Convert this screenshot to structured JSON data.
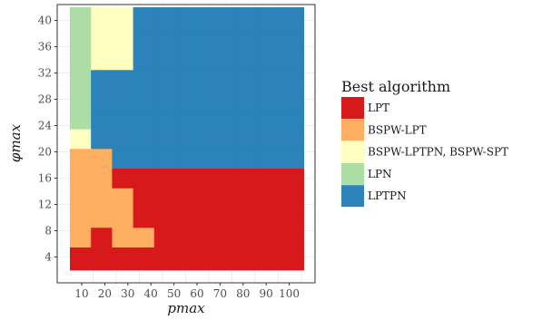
{
  "chart_data": {
    "type": "heatmap",
    "xlabel": "pmax",
    "ylabel": "φmax",
    "x_categories": [
      "10",
      "20",
      "30",
      "40",
      "50",
      "60",
      "70",
      "80",
      "90",
      "100"
    ],
    "y_ticks": [
      "4",
      "8",
      "12",
      "16",
      "20",
      "24",
      "28",
      "32",
      "36",
      "40"
    ],
    "grid": true,
    "legend_position": "right",
    "legend": {
      "title": "Best algorithm",
      "entries": [
        {
          "key": "LPT",
          "label": "LPT",
          "color": "#d7191c"
        },
        {
          "key": "BSPW-LPT",
          "label": "BSPW-LPT",
          "color": "#fdae61"
        },
        {
          "key": "BSPW-LPTPN_SPT",
          "label": "BSPW-LPTPN, BSPW-SPT",
          "color": "#ffffbf"
        },
        {
          "key": "LPN",
          "label": "LPN",
          "color": "#abdda4"
        },
        {
          "key": "LPTPN",
          "label": "LPTPN",
          "color": "#2b83ba"
        }
      ]
    },
    "cell_rows": [
      {
        "phimax": 4,
        "best": [
          "LPT",
          "LPT",
          "LPT",
          "LPT",
          "LPT",
          "LPT",
          "LPT",
          "LPT",
          "LPT",
          "LPT",
          "LPT"
        ]
      },
      {
        "phimax": 7,
        "best": [
          "BSPW-LPT",
          "LPT",
          "BSPW-LPT",
          "BSPW-LPT",
          "LPT",
          "LPT",
          "LPT",
          "LPT",
          "LPT",
          "LPT",
          "LPT"
        ]
      },
      {
        "phimax": 10,
        "best": [
          "BSPW-LPT",
          "BSPW-LPT",
          "BSPW-LPT",
          "LPT",
          "LPT",
          "LPT",
          "LPT",
          "LPT",
          "LPT",
          "LPT",
          "LPT"
        ]
      },
      {
        "phimax": 13,
        "best": [
          "BSPW-LPT",
          "BSPW-LPT",
          "BSPW-LPT",
          "LPT",
          "LPT",
          "LPT",
          "LPT",
          "LPT",
          "LPT",
          "LPT",
          "LPT"
        ]
      },
      {
        "phimax": 16,
        "best": [
          "BSPW-LPT",
          "BSPW-LPT",
          "LPT",
          "LPT",
          "LPT",
          "LPT",
          "LPT",
          "LPT",
          "LPT",
          "LPT",
          "LPT"
        ]
      },
      {
        "phimax": 19,
        "best": [
          "BSPW-LPT",
          "BSPW-LPT",
          "LPTPN",
          "LPTPN",
          "LPTPN",
          "LPTPN",
          "LPTPN",
          "LPTPN",
          "LPTPN",
          "LPTPN",
          "LPTPN"
        ]
      },
      {
        "phimax": 22,
        "best": [
          "BSPW-LPTPN_SPT",
          "LPTPN",
          "LPTPN",
          "LPTPN",
          "LPTPN",
          "LPTPN",
          "LPTPN",
          "LPTPN",
          "LPTPN",
          "LPTPN",
          "LPTPN"
        ]
      },
      {
        "phimax": 25,
        "best": [
          "LPN",
          "LPTPN",
          "LPTPN",
          "LPTPN",
          "LPTPN",
          "LPTPN",
          "LPTPN",
          "LPTPN",
          "LPTPN",
          "LPTPN",
          "LPTPN"
        ]
      },
      {
        "phimax": 28,
        "best": [
          "LPN",
          "LPTPN",
          "LPTPN",
          "LPTPN",
          "LPTPN",
          "LPTPN",
          "LPTPN",
          "LPTPN",
          "LPTPN",
          "LPTPN",
          "LPTPN"
        ]
      },
      {
        "phimax": 31,
        "best": [
          "LPN",
          "LPTPN",
          "LPTPN",
          "LPTPN",
          "LPTPN",
          "LPTPN",
          "LPTPN",
          "LPTPN",
          "LPTPN",
          "LPTPN",
          "LPTPN"
        ]
      },
      {
        "phimax": 34,
        "best": [
          "LPN",
          "BSPW-LPTPN_SPT",
          "BSPW-LPTPN_SPT",
          "LPTPN",
          "LPTPN",
          "LPTPN",
          "LPTPN",
          "LPTPN",
          "LPTPN",
          "LPTPN",
          "LPTPN"
        ]
      },
      {
        "phimax": 37,
        "best": [
          "LPN",
          "BSPW-LPTPN_SPT",
          "BSPW-LPTPN_SPT",
          "LPTPN",
          "LPTPN",
          "LPTPN",
          "LPTPN",
          "LPTPN",
          "LPTPN",
          "LPTPN",
          "LPTPN"
        ]
      },
      {
        "phimax": 40,
        "best": [
          "LPN",
          "BSPW-LPTPN_SPT",
          "BSPW-LPTPN_SPT",
          "LPTPN",
          "LPTPN",
          "LPTPN",
          "LPTPN",
          "LPTPN",
          "LPTPN",
          "LPTPN",
          "LPTPN"
        ]
      }
    ]
  }
}
